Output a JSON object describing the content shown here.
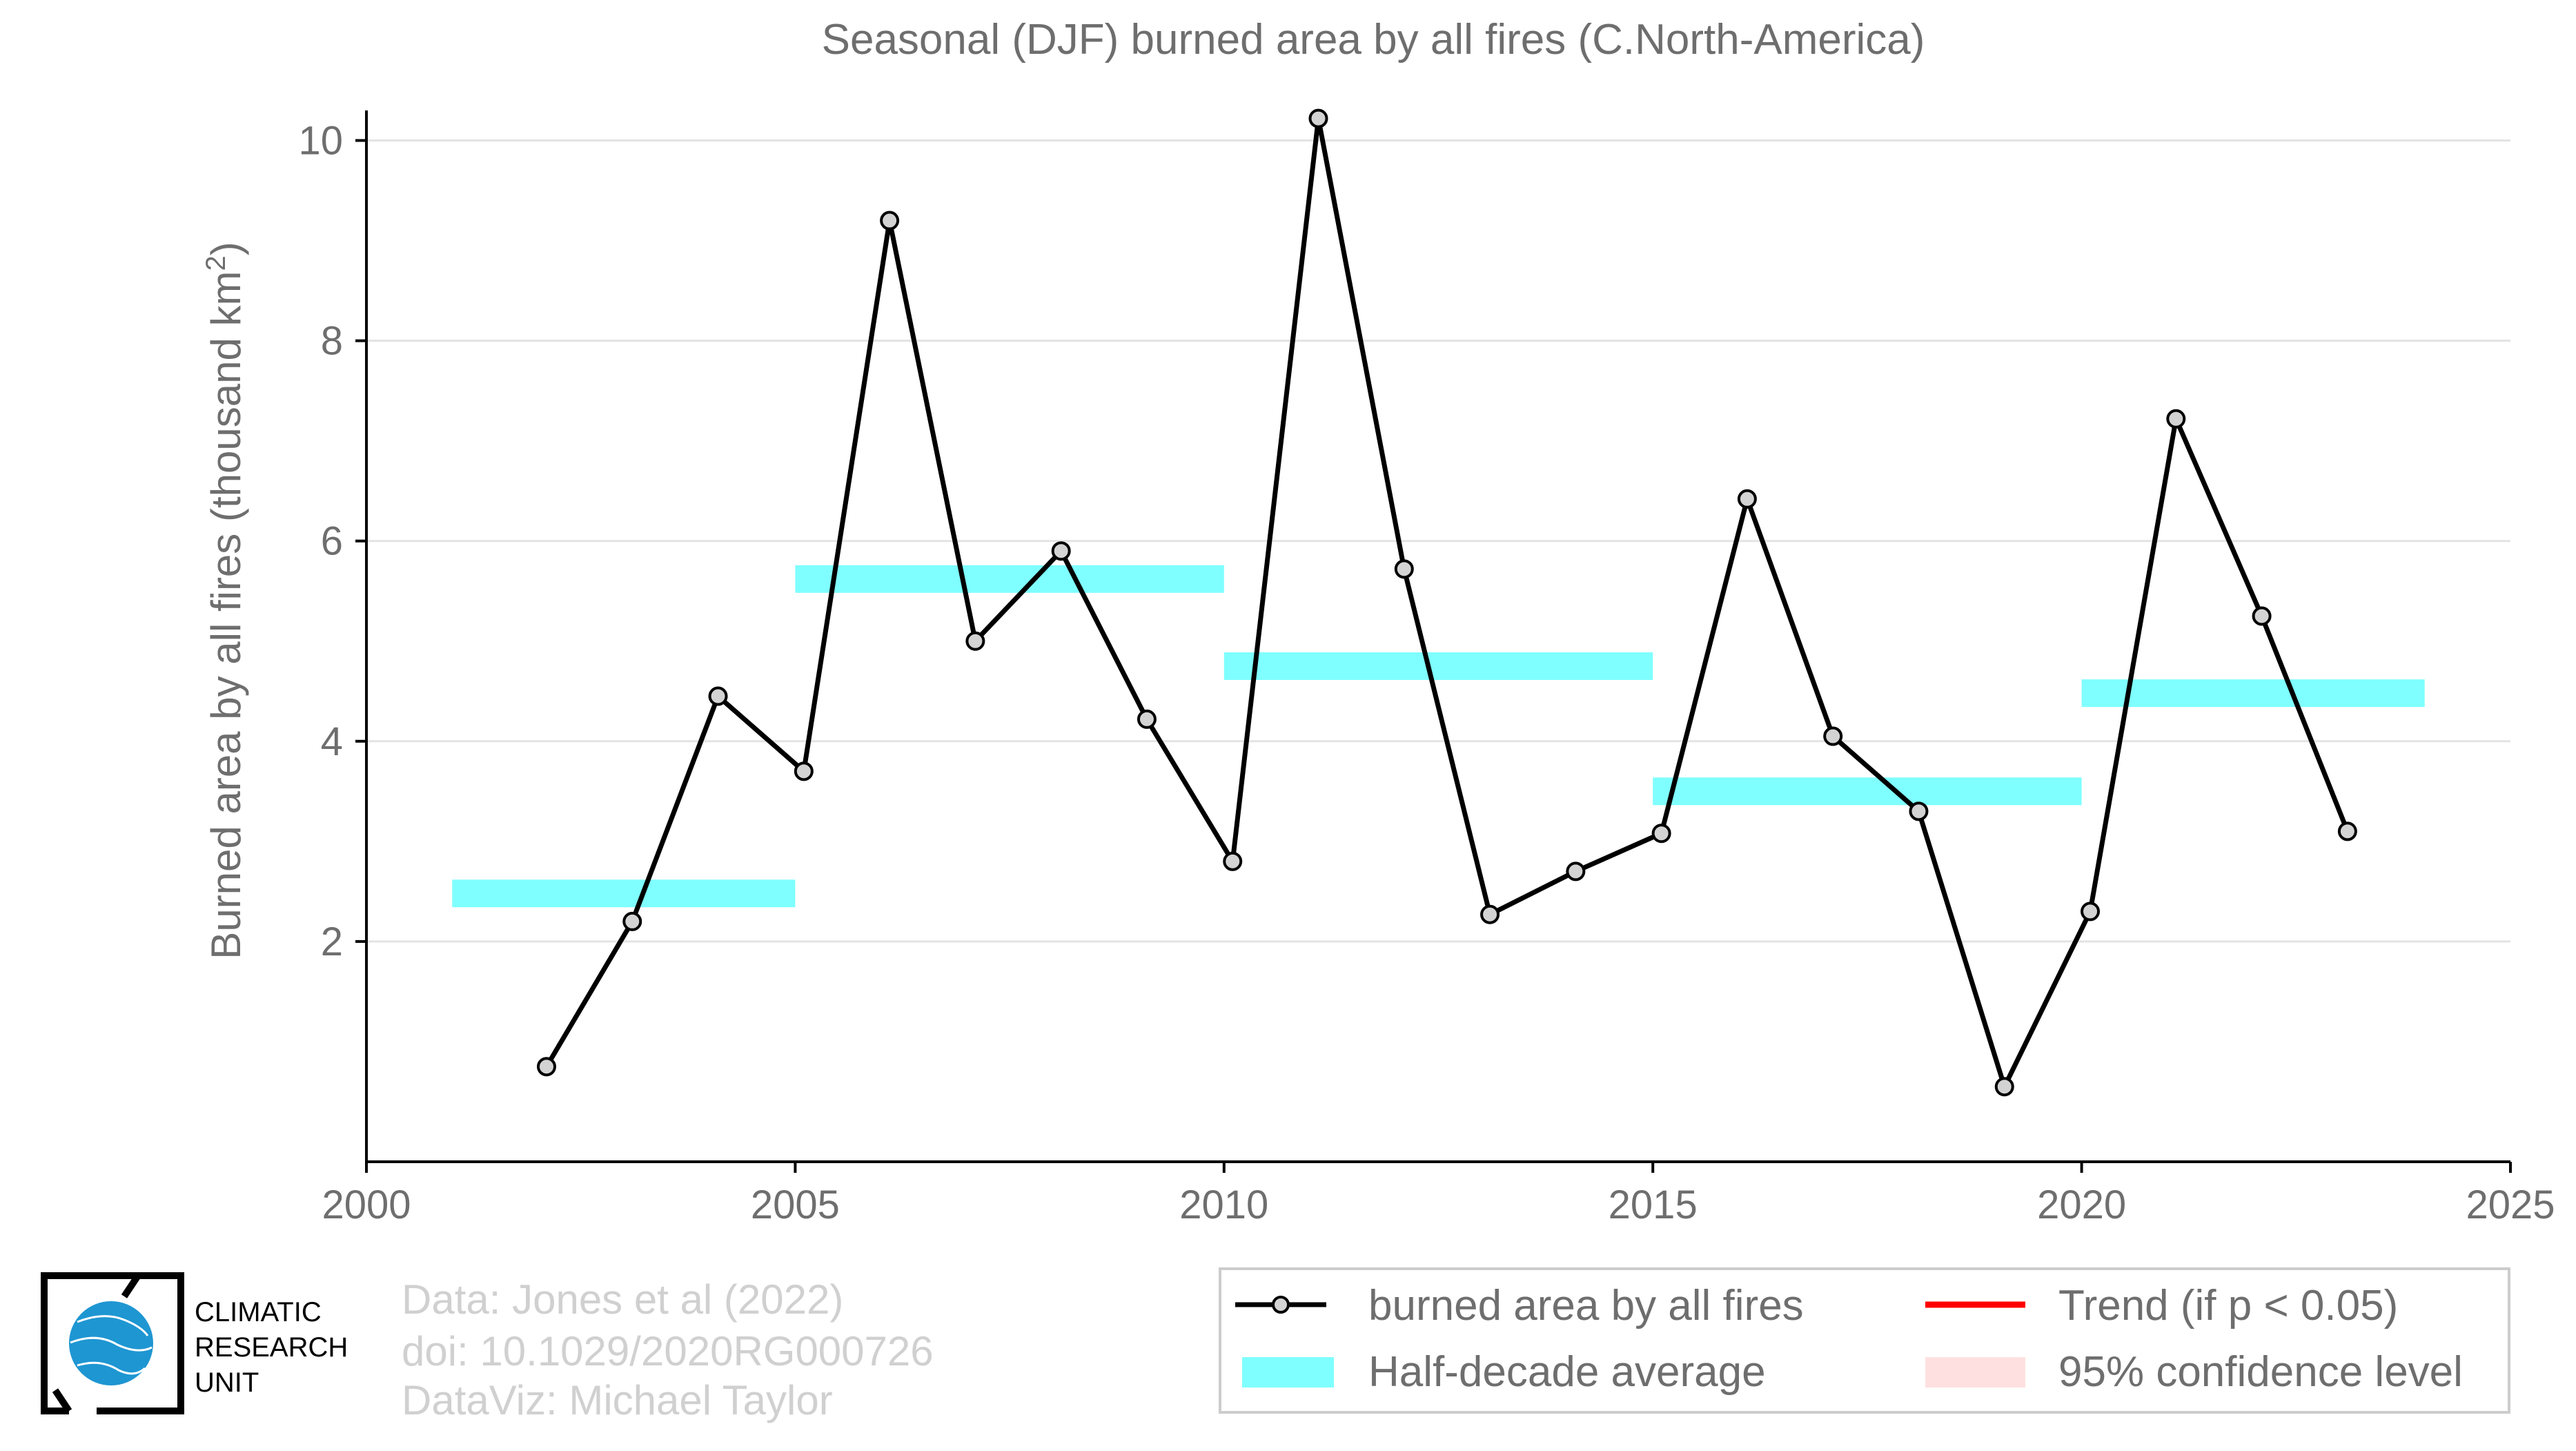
{
  "chart_data": {
    "type": "line",
    "title": "Seasonal (DJF) burned area by all fires (C.North-America)",
    "ylabel": "Burned area by all fires (thousand km",
    "ylabel_sup": "2",
    "ylabel_close": ")",
    "xlim": [
      2000,
      2025
    ],
    "ylim": [
      -0.2,
      10.3
    ],
    "x_ticks": [
      2000,
      2005,
      2010,
      2015,
      2020,
      2025
    ],
    "y_ticks": [
      2,
      4,
      6,
      8,
      10
    ],
    "grid": "horizontal",
    "series": [
      {
        "name": "burned area by all fires",
        "type": "line",
        "color": "#000000",
        "marker_fill": "#d3d3d3",
        "x": [
          2002.1,
          2003.1,
          2004.1,
          2005.1,
          2006.1,
          2007.1,
          2008.1,
          2009.1,
          2010.1,
          2011.1,
          2012.1,
          2013.1,
          2014.1,
          2015.1,
          2016.1,
          2017.1,
          2018.1,
          2019.1,
          2020.1,
          2021.1,
          2022.1,
          2023.1
        ],
        "values": [
          0.75,
          2.2,
          4.45,
          3.7,
          9.2,
          5.0,
          5.9,
          4.22,
          2.8,
          10.22,
          5.72,
          2.27,
          2.7,
          3.08,
          6.42,
          4.05,
          3.3,
          0.55,
          2.3,
          7.22,
          5.25,
          3.1
        ]
      },
      {
        "name": "Half-decade average",
        "type": "step-bars",
        "color": "#7fffff",
        "segments": [
          {
            "x0": 2001,
            "x1": 2005,
            "value": 2.48
          },
          {
            "x0": 2005,
            "x1": 2010,
            "value": 5.62
          },
          {
            "x0": 2010,
            "x1": 2015,
            "value": 4.75
          },
          {
            "x0": 2015,
            "x1": 2020,
            "value": 3.5
          },
          {
            "x0": 2020,
            "x1": 2024,
            "value": 4.48
          }
        ]
      }
    ],
    "legend": {
      "placement": "bottom-right",
      "entries": [
        {
          "label": "burned area by all fires",
          "color": "#000000",
          "kind": "line-marker"
        },
        {
          "label": "Trend (if p < 0.05)",
          "color": "#ff0000",
          "kind": "line"
        },
        {
          "label": "Half-decade average",
          "color": "#7fffff",
          "kind": "patch"
        },
        {
          "label": "95% confidence level",
          "color": "#ffe0e0",
          "kind": "patch"
        }
      ]
    }
  },
  "credits": {
    "line1": "Data: Jones et al (2022)",
    "line2": "doi: 10.1029/2020RG000726",
    "line3": "DataViz: Michael Taylor"
  },
  "logo": {
    "line1": "CLIMATIC",
    "line2": "RESEARCH",
    "line3": "UNIT",
    "globe_color": "#1e96d2"
  }
}
